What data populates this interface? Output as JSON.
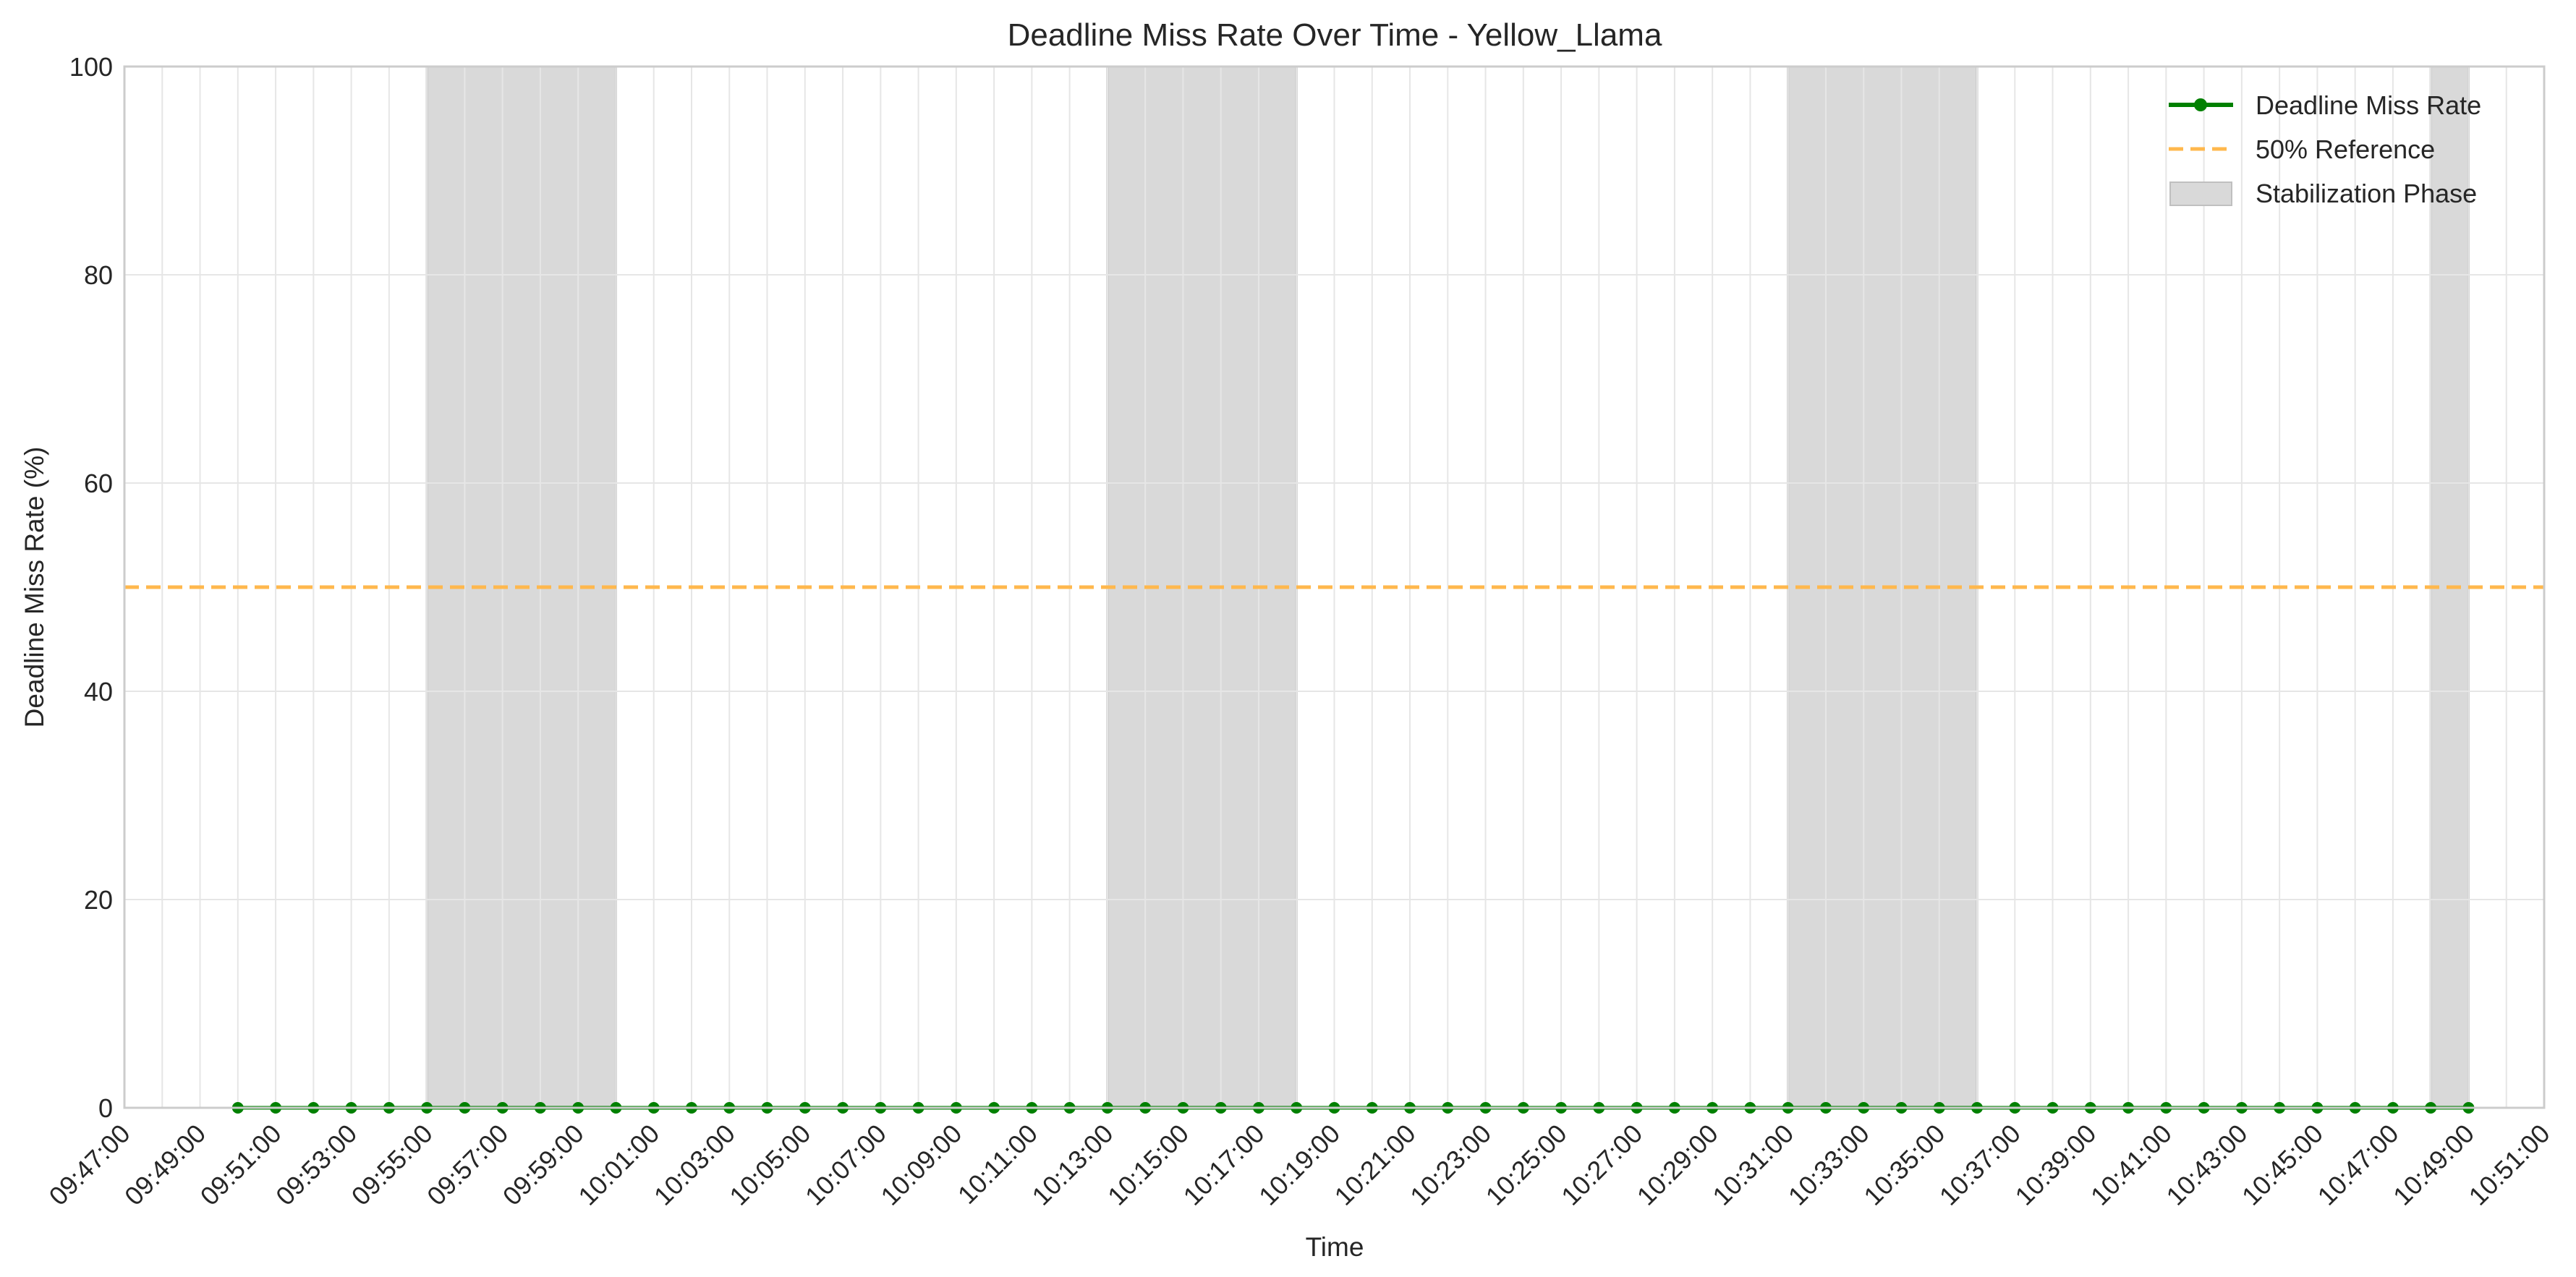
{
  "chart_data": {
    "type": "line",
    "title": "Deadline Miss Rate Over Time - Yellow_Llama",
    "xlabel": "Time",
    "ylabel": "Deadline Miss Rate (%)",
    "xlim": [
      "09:47:00",
      "10:51:00"
    ],
    "ylim": [
      0,
      100
    ],
    "x_ticks": [
      "09:47:00",
      "09:49:00",
      "09:51:00",
      "09:53:00",
      "09:55:00",
      "09:57:00",
      "09:59:00",
      "10:01:00",
      "10:03:00",
      "10:05:00",
      "10:07:00",
      "10:09:00",
      "10:11:00",
      "10:13:00",
      "10:15:00",
      "10:17:00",
      "10:19:00",
      "10:21:00",
      "10:23:00",
      "10:25:00",
      "10:27:00",
      "10:29:00",
      "10:31:00",
      "10:33:00",
      "10:35:00",
      "10:37:00",
      "10:39:00",
      "10:41:00",
      "10:43:00",
      "10:45:00",
      "10:47:00",
      "10:49:00",
      "10:51:00"
    ],
    "y_ticks": [
      0,
      20,
      40,
      60,
      80,
      100
    ],
    "grid": true,
    "legend_position": "top-right",
    "series": [
      {
        "name": "Deadline Miss Rate",
        "color": "#008000",
        "x": [
          "09:50:00",
          "09:51:00",
          "09:52:00",
          "09:53:00",
          "09:54:00",
          "09:55:00",
          "09:56:00",
          "09:57:00",
          "09:58:00",
          "09:59:00",
          "10:00:00",
          "10:01:00",
          "10:02:00",
          "10:03:00",
          "10:04:00",
          "10:05:00",
          "10:06:00",
          "10:07:00",
          "10:08:00",
          "10:09:00",
          "10:10:00",
          "10:11:00",
          "10:12:00",
          "10:13:00",
          "10:14:00",
          "10:15:00",
          "10:16:00",
          "10:17:00",
          "10:18:00",
          "10:19:00",
          "10:20:00",
          "10:21:00",
          "10:22:00",
          "10:23:00",
          "10:24:00",
          "10:25:00",
          "10:26:00",
          "10:27:00",
          "10:28:00",
          "10:29:00",
          "10:30:00",
          "10:31:00",
          "10:32:00",
          "10:33:00",
          "10:34:00",
          "10:35:00",
          "10:36:00",
          "10:37:00",
          "10:38:00",
          "10:39:00",
          "10:40:00",
          "10:41:00",
          "10:42:00",
          "10:43:00",
          "10:44:00",
          "10:45:00",
          "10:46:00",
          "10:47:00",
          "10:48:00",
          "10:49:00"
        ],
        "values": [
          0,
          0,
          0,
          0,
          0,
          0,
          0,
          0,
          0,
          0,
          0,
          0,
          0,
          0,
          0,
          0,
          0,
          0,
          0,
          0,
          0,
          0,
          0,
          0,
          0,
          0,
          0,
          0,
          0,
          0,
          0,
          0,
          0,
          0,
          0,
          0,
          0,
          0,
          0,
          0,
          0,
          0,
          0,
          0,
          0,
          0,
          0,
          0,
          0,
          0,
          0,
          0,
          0,
          0,
          0,
          0,
          0,
          0,
          0,
          0
        ]
      }
    ],
    "reference_line": {
      "name": "50% Reference",
      "y": 50,
      "color": "#FFB84D",
      "style": "dashed"
    },
    "shaded_regions": {
      "name": "Stabilization Phase",
      "color": "#D9D9D9",
      "ranges": [
        [
          "09:55:00",
          "10:00:00"
        ],
        [
          "10:13:00",
          "10:18:00"
        ],
        [
          "10:31:00",
          "10:36:00"
        ],
        [
          "10:48:00",
          "10:49:00"
        ]
      ]
    },
    "legend": [
      "Deadline Miss Rate",
      "50% Reference",
      "Stabilization Phase"
    ]
  }
}
